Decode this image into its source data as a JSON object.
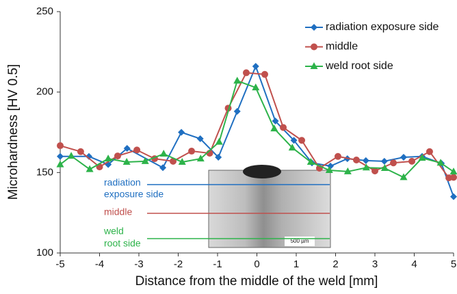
{
  "chart_data": {
    "type": "line",
    "x_label": "Distance from the middle of the weld [mm]",
    "y_label": "Microhardness [HV 0.5]",
    "xlim": [
      -5,
      5
    ],
    "xticks": [
      -5,
      -4,
      -3,
      -2,
      -1,
      0,
      1,
      2,
      3,
      4,
      5
    ],
    "ylim": [
      100,
      250
    ],
    "yticks": [
      100,
      150,
      200,
      250
    ],
    "legend": "top-right",
    "series": [
      {
        "name": "radiation exposure side",
        "color": "#1f6fc1",
        "marker": "diamond",
        "x": [
          -5,
          -4.27,
          -3.78,
          -3.3,
          -2.39,
          -1.92,
          -1.44,
          -0.98,
          -0.5,
          -0.03,
          0.47,
          0.94,
          1.4,
          1.87,
          2.3,
          2.77,
          3.24,
          3.73,
          4.2,
          4.69,
          5
        ],
        "values": [
          160,
          160,
          155,
          165,
          153,
          175,
          171,
          159.5,
          188,
          216,
          182,
          170,
          156,
          154,
          158.6,
          157.4,
          157,
          159.5,
          160,
          155.7,
          135
        ]
      },
      {
        "name": "middle",
        "color": "#c0504d",
        "marker": "circle",
        "x": [
          -5,
          -4.48,
          -4.0,
          -3.54,
          -3.05,
          -2.6,
          -2.13,
          -1.66,
          -1.2,
          -0.73,
          -0.27,
          0.2,
          0.67,
          1.14,
          1.59,
          2.06,
          2.53,
          3.0,
          3.47,
          3.94,
          4.39,
          4.88,
          5
        ],
        "values": [
          166.7,
          163,
          153.5,
          160.3,
          164,
          158.6,
          157,
          163.3,
          162,
          190,
          212,
          211,
          178,
          170,
          152.7,
          160,
          157.8,
          151,
          156,
          157,
          163,
          146.7,
          147
        ]
      },
      {
        "name": "weld root side",
        "color": "#2db34a",
        "marker": "triangle",
        "x": [
          -5,
          -4.72,
          -4.25,
          -3.78,
          -3.31,
          -2.84,
          -2.37,
          -1.9,
          -1.43,
          -0.96,
          -0.5,
          -0.03,
          0.44,
          0.9,
          1.37,
          1.84,
          2.31,
          2.78,
          3.25,
          3.73,
          4.2,
          4.67,
          5
        ],
        "values": [
          155,
          160.3,
          152,
          158.6,
          156.5,
          157,
          161.6,
          156.5,
          158.6,
          169,
          207,
          202.8,
          177.3,
          165.4,
          156.5,
          151.4,
          150.6,
          153,
          152.7,
          147,
          159,
          156,
          150.5
        ]
      }
    ],
    "annotations": [
      {
        "lines": [
          "radiation",
          "exposure side"
        ]
      },
      {
        "lines": [
          "middle"
        ]
      },
      {
        "lines": [
          "weld",
          "root side"
        ]
      }
    ],
    "scale_bar_label": "500 µm"
  }
}
